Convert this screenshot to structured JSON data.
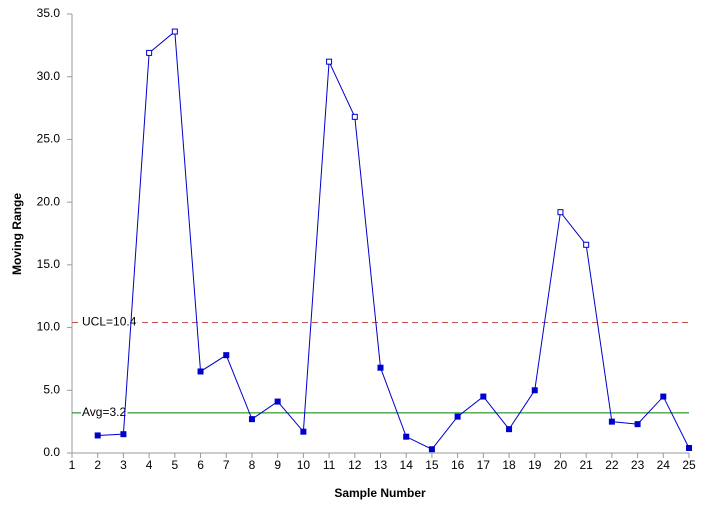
{
  "chart_data": {
    "type": "line",
    "x_label": "Sample Number",
    "y_label": "Moving Range",
    "x": [
      2,
      3,
      4,
      5,
      6,
      7,
      8,
      9,
      10,
      11,
      12,
      13,
      14,
      15,
      16,
      17,
      18,
      19,
      20,
      21,
      22,
      23,
      24,
      25
    ],
    "series": [
      {
        "name": "Moving Range",
        "color": "#0000cc",
        "values": [
          1.4,
          1.5,
          31.9,
          33.6,
          6.5,
          7.8,
          2.7,
          4.1,
          1.7,
          31.2,
          26.8,
          6.8,
          1.3,
          0.3,
          2.9,
          4.5,
          1.9,
          5.0,
          19.2,
          16.6,
          2.5,
          2.3,
          4.5,
          0.4
        ]
      }
    ],
    "xlim": [
      1,
      25
    ],
    "xticks": [
      1,
      2,
      3,
      4,
      5,
      6,
      7,
      8,
      9,
      10,
      11,
      12,
      13,
      14,
      15,
      16,
      17,
      18,
      19,
      20,
      21,
      22,
      23,
      24,
      25
    ],
    "ylim": [
      0,
      35
    ],
    "yticks": [
      {
        "value": 0,
        "label": "0.0"
      },
      {
        "value": 5,
        "label": "5.0"
      },
      {
        "value": 10,
        "label": "10.0"
      },
      {
        "value": 15,
        "label": "15.0"
      },
      {
        "value": 20,
        "label": "20.0"
      },
      {
        "value": 25,
        "label": "25.0"
      },
      {
        "value": 30,
        "label": "30.0"
      },
      {
        "value": 35,
        "label": "35.0"
      }
    ],
    "reference_lines": [
      {
        "value": 10.4,
        "label": "UCL=10.4",
        "color": "#c0504d",
        "dashed": true
      },
      {
        "value": 3.2,
        "label": "Avg=3.2",
        "color": "#008000",
        "dashed": false
      }
    ]
  }
}
